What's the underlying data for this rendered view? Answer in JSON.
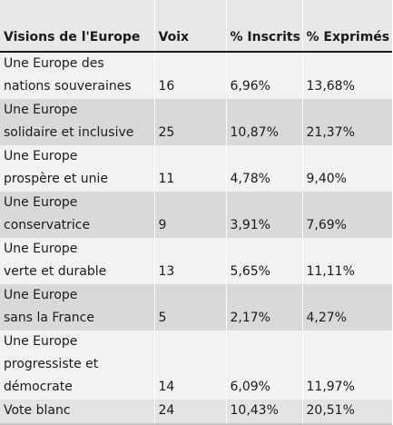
{
  "table": {
    "headers": [
      "Visions de l'Europe",
      "Voix",
      "% Inscrits",
      "% Exprimés"
    ],
    "rows": [
      {
        "vision_lines": [
          "Une Europe des",
          "nations souveraines"
        ],
        "voix": "16",
        "inscrits": "6,96%",
        "exprimes": "13,68%"
      },
      {
        "vision_lines": [
          "Une Europe",
          "solidaire et inclusive"
        ],
        "voix": "25",
        "inscrits": "10,87%",
        "exprimes": "21,37%"
      },
      {
        "vision_lines": [
          "Une Europe",
          "prospère et unie"
        ],
        "voix": "11",
        "inscrits": "4,78%",
        "exprimes": "9,40%"
      },
      {
        "vision_lines": [
          "Une Europe",
          "conservatrice"
        ],
        "voix": "9",
        "inscrits": "3,91%",
        "exprimes": "7,69%"
      },
      {
        "vision_lines": [
          "Une Europe",
          "verte et durable"
        ],
        "voix": "13",
        "inscrits": "5,65%",
        "exprimes": "11,11%"
      },
      {
        "vision_lines": [
          "Une Europe",
          "sans la France"
        ],
        "voix": "5",
        "inscrits": "2,17%",
        "exprimes": "4,27%"
      },
      {
        "vision_lines": [
          "Une Europe",
          "progressiste et",
          "démocrate"
        ],
        "voix": "14",
        "inscrits": "6,09%",
        "exprimes": "11,97%"
      },
      {
        "vision_lines": [
          "Vote blanc"
        ],
        "voix": "24",
        "inscrits": "10,43%",
        "exprimes": "20,51%"
      }
    ]
  }
}
